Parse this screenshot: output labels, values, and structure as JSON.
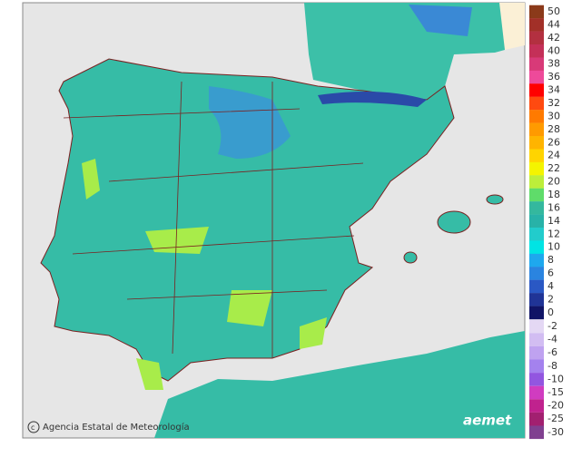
{
  "credit": "Agencia Estatal de Meteorología",
  "logo": "aemet",
  "legend": {
    "items": [
      {
        "value": 50,
        "color": "#8b3a1a"
      },
      {
        "value": 44,
        "color": "#a23028"
      },
      {
        "value": 42,
        "color": "#b33040"
      },
      {
        "value": 40,
        "color": "#c43058"
      },
      {
        "value": 38,
        "color": "#d83a78"
      },
      {
        "value": 36,
        "color": "#ee4a9a"
      },
      {
        "value": 34,
        "color": "#ff0000"
      },
      {
        "value": 32,
        "color": "#ff4a10"
      },
      {
        "value": 30,
        "color": "#ff7a00"
      },
      {
        "value": 28,
        "color": "#ff9a00"
      },
      {
        "value": 26,
        "color": "#ffb400"
      },
      {
        "value": 24,
        "color": "#ffd400"
      },
      {
        "value": 22,
        "color": "#f4f400"
      },
      {
        "value": 20,
        "color": "#bdee3a"
      },
      {
        "value": 18,
        "color": "#5fdc6a"
      },
      {
        "value": 16,
        "color": "#34b89e"
      },
      {
        "value": 14,
        "color": "#28b2a8"
      },
      {
        "value": 12,
        "color": "#22cccc"
      },
      {
        "value": 10,
        "color": "#00e4e4"
      },
      {
        "value": 8,
        "color": "#1ea8ee"
      },
      {
        "value": 6,
        "color": "#2a84e0"
      },
      {
        "value": 4,
        "color": "#2a58c4"
      },
      {
        "value": 2,
        "color": "#203496"
      },
      {
        "value": 0,
        "color": "#101466"
      },
      {
        "value": -2,
        "color": "#e4d8f4"
      },
      {
        "value": -4,
        "color": "#d2bdf2"
      },
      {
        "value": -6,
        "color": "#bfa2f0"
      },
      {
        "value": -8,
        "color": "#a482ee"
      },
      {
        "value": -10,
        "color": "#9256e0"
      },
      {
        "value": -15,
        "color": "#d03cc0"
      },
      {
        "value": -20,
        "color": "#c0228e"
      },
      {
        "value": -25,
        "color": "#a22070"
      },
      {
        "value": -30,
        "color": "#804090"
      }
    ]
  }
}
